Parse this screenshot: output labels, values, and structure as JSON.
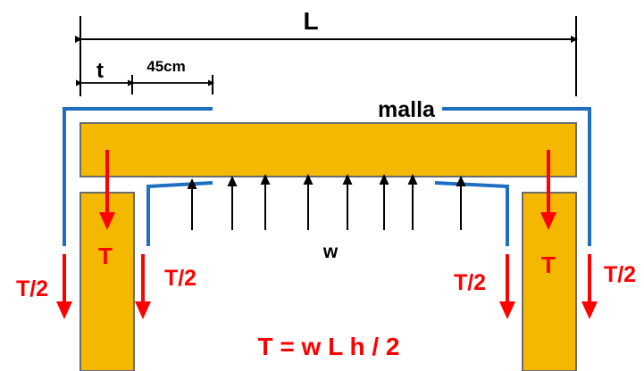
{
  "labels": {
    "span": "L",
    "thickness": "t",
    "offset": "45cm",
    "mesh": "malla",
    "load": "w",
    "tension": "T",
    "half_tension": "T/2",
    "formula": "T = w L h / 2"
  },
  "colors": {
    "concrete_fill": "#F5B800",
    "concrete_edge": "#6B6B6B",
    "rebar": "#1F6FC0",
    "force": "#FF0000",
    "dimension": "#000000"
  }
}
